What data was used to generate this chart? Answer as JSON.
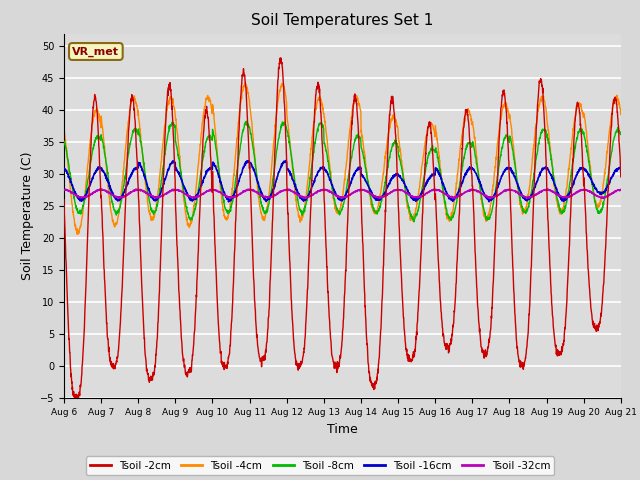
{
  "title": "Soil Temperatures Set 1",
  "xlabel": "Time",
  "ylabel": "Soil Temperature (C)",
  "ylim": [
    -5,
    52
  ],
  "yticks": [
    -5,
    0,
    5,
    10,
    15,
    20,
    25,
    30,
    35,
    40,
    45,
    50
  ],
  "background_color": "#dcdcdc",
  "plot_bg_color": "#dcdcdc",
  "grid_color": "#ffffff",
  "legend_label": "VR_met",
  "series_labels": [
    "Tsoil -2cm",
    "Tsoil -4cm",
    "Tsoil -8cm",
    "Tsoil -16cm",
    "Tsoil -32cm"
  ],
  "series_colors": [
    "#cc0000",
    "#ff8800",
    "#00bb00",
    "#0000cc",
    "#bb00bb"
  ],
  "n_days": 15,
  "points_per_day": 144,
  "start_day": 6,
  "end_day": 21,
  "figsize": [
    6.4,
    4.8
  ],
  "dpi": 100
}
